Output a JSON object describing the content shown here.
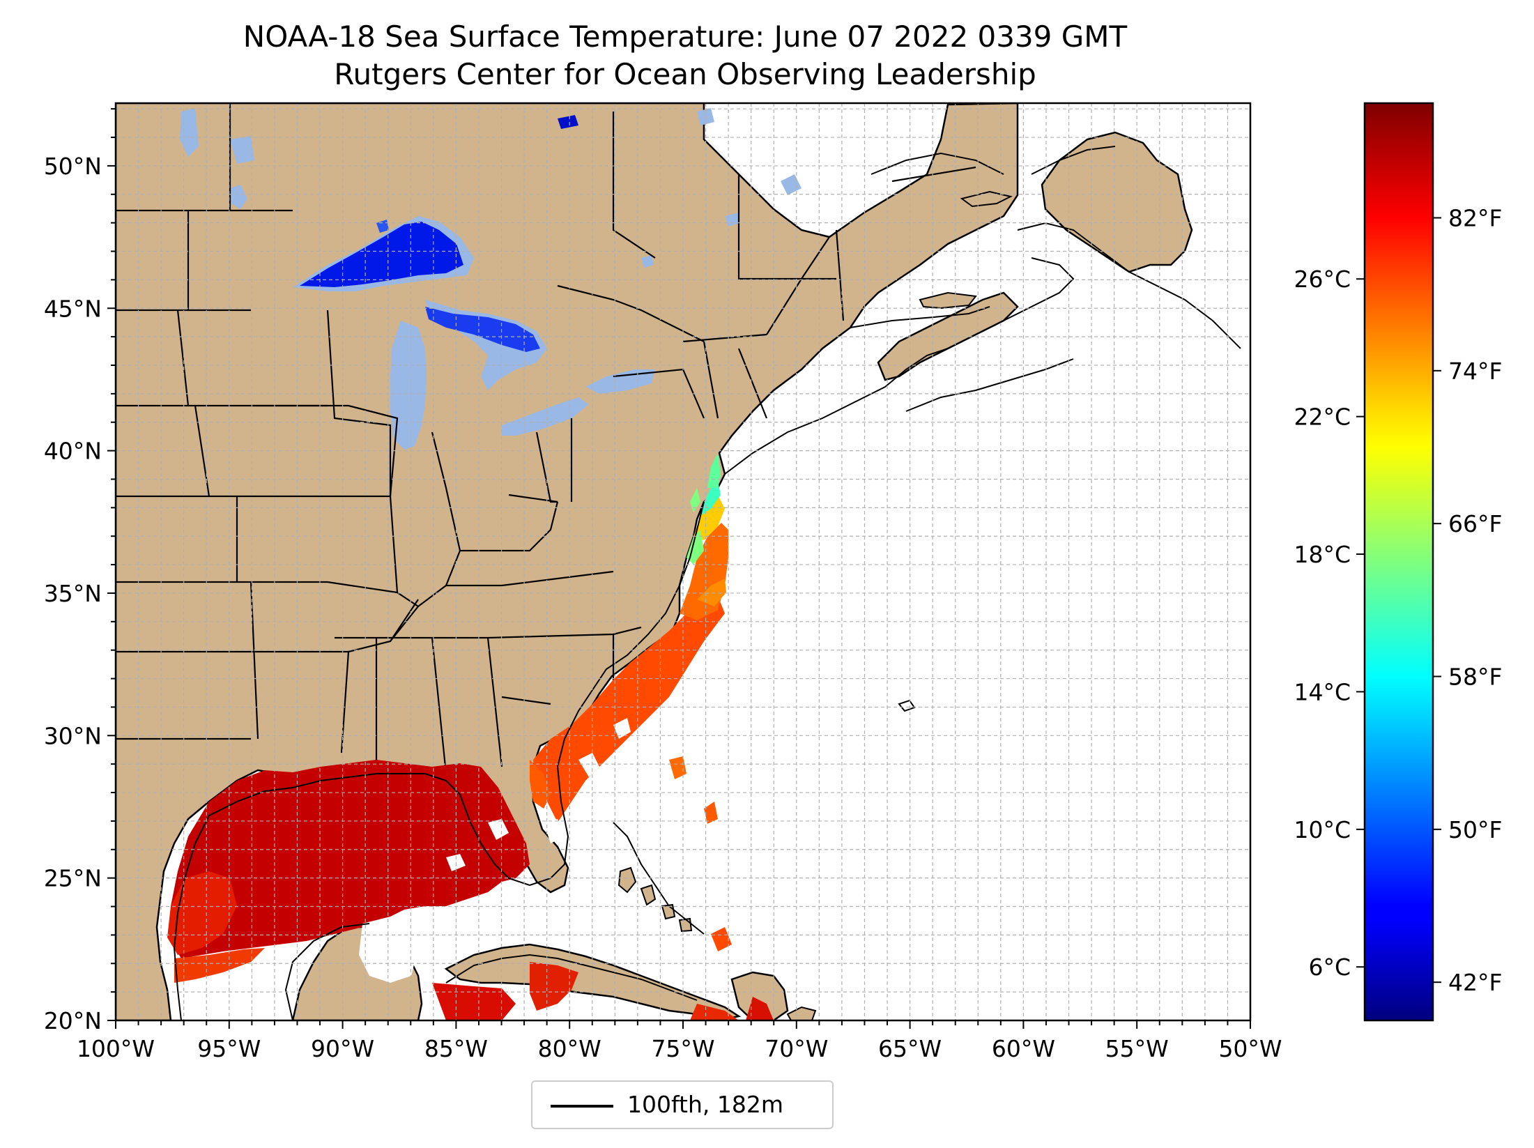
{
  "title": "NOAA-18 Sea Surface Temperature: June 07 2022 0339 GMT",
  "subtitle": "Rutgers Center for Ocean Observing Leadership",
  "map": {
    "lon_range": [
      -100,
      -50
    ],
    "lat_range": [
      20,
      52.2
    ],
    "grid": true,
    "lon_ticks": [
      "100°W",
      "95°W",
      "90°W",
      "85°W",
      "80°W",
      "75°W",
      "70°W",
      "65°W",
      "60°W",
      "55°W",
      "50°W"
    ],
    "lat_ticks": [
      {
        "lat": 50,
        "label": "50°N"
      },
      {
        "lat": 45,
        "label": "45°N"
      },
      {
        "lat": 40,
        "label": "40°N"
      },
      {
        "lat": 35,
        "label": "35°N"
      },
      {
        "lat": 30,
        "label": "30°N"
      },
      {
        "lat": 25,
        "label": "25°N"
      },
      {
        "lat": 20,
        "label": "20°N"
      }
    ],
    "colors": {
      "land": "#d2b48c",
      "lakes": "#99b8e6",
      "ocean": "#ffffff",
      "coastline": "#000000",
      "grid": "#b0b0b0"
    }
  },
  "colorbar": {
    "colormap": "jet",
    "range_f": [
      40,
      88
    ],
    "celsius_ticks": [
      {
        "c": 6,
        "label": "6°C"
      },
      {
        "c": 10,
        "label": "10°C"
      },
      {
        "c": 14,
        "label": "14°C"
      },
      {
        "c": 18,
        "label": "18°C"
      },
      {
        "c": 22,
        "label": "22°C"
      },
      {
        "c": 26,
        "label": "26°C"
      }
    ],
    "fahrenheit_ticks": [
      {
        "f": 42,
        "label": "42°F"
      },
      {
        "f": 50,
        "label": "50°F"
      },
      {
        "f": 58,
        "label": "58°F"
      },
      {
        "f": 66,
        "label": "66°F"
      },
      {
        "f": 74,
        "label": "74°F"
      },
      {
        "f": 82,
        "label": "82°F"
      }
    ]
  },
  "legend": {
    "label": "100fth, 182m",
    "line_color": "#000000"
  }
}
